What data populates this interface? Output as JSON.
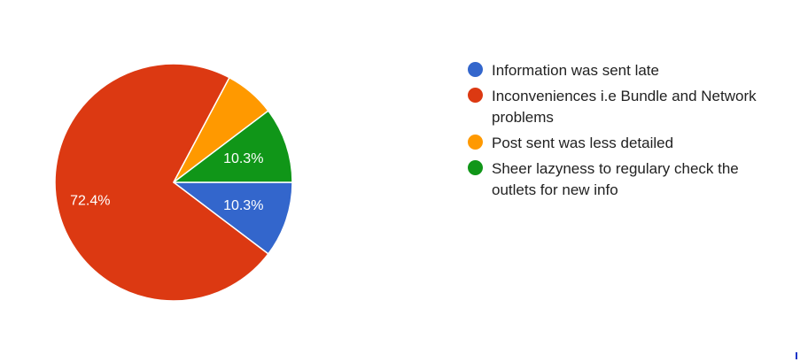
{
  "chart_data": {
    "type": "pie",
    "title": "",
    "slices": [
      {
        "label": "Information was sent late",
        "value": 10.3,
        "display": "10.3%",
        "color": "#3366cc"
      },
      {
        "label": "Inconveniences i.e Bundle and Network problems",
        "value": 72.4,
        "display": "72.4%",
        "color": "#dc3912"
      },
      {
        "label": "Post sent was less detailed",
        "value": 6.9,
        "display": "",
        "color": "#ff9900"
      },
      {
        "label": "Sheer lazyness to regulary check the outlets for new info",
        "value": 10.3,
        "display": "10.3%",
        "color": "#109618"
      }
    ],
    "legend_position": "right"
  }
}
